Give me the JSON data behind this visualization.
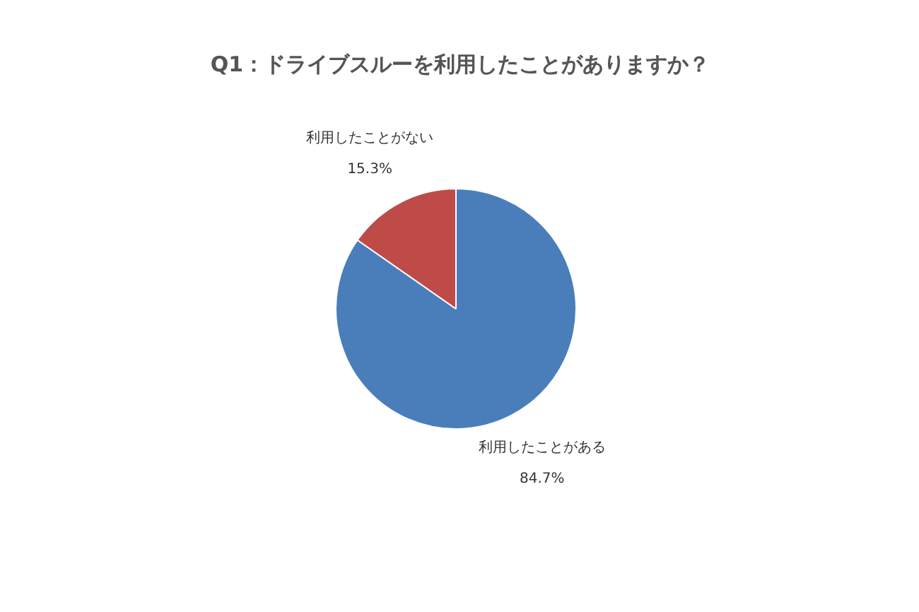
{
  "chart_data": {
    "type": "pie",
    "title": "Q1：ドライブスルーを利用したことがありますか？",
    "categories": [
      "利用したことがある",
      "利用したことがない"
    ],
    "values": [
      84.7,
      15.3
    ],
    "colors": [
      "#4a7ebb",
      "#be4b48"
    ],
    "value_labels": [
      "84.7%",
      "15.3%"
    ]
  }
}
